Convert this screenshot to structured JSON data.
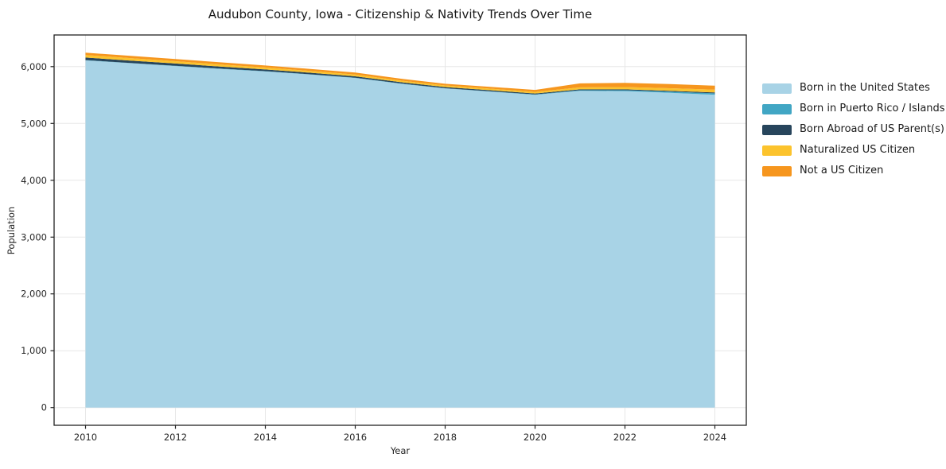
{
  "chart_data": {
    "type": "area",
    "stacked": true,
    "title": "Audubon County, Iowa - Citizenship & Nativity Trends Over Time",
    "xlabel": "Year",
    "ylabel": "Population",
    "x": [
      2010,
      2011,
      2012,
      2013,
      2014,
      2015,
      2016,
      2017,
      2018,
      2019,
      2020,
      2021,
      2022,
      2023,
      2024
    ],
    "series": [
      {
        "name": "Born in the United States",
        "color": "#a8d3e6",
        "values": [
          6110,
          6060,
          6010,
          5960,
          5915,
          5860,
          5800,
          5700,
          5615,
          5560,
          5505,
          5575,
          5570,
          5540,
          5505
        ]
      },
      {
        "name": "Born in Puerto Rico / Islands",
        "color": "#41a6c4",
        "values": [
          5,
          5,
          5,
          5,
          5,
          5,
          5,
          5,
          5,
          5,
          5,
          10,
          15,
          20,
          25
        ]
      },
      {
        "name": "Born Abroad of US Parent(s)",
        "color": "#27455c",
        "values": [
          45,
          42,
          40,
          35,
          30,
          28,
          25,
          22,
          20,
          20,
          18,
          15,
          15,
          15,
          15
        ]
      },
      {
        "name": "Naturalized US Citizen",
        "color": "#fcc32d",
        "values": [
          45,
          43,
          40,
          38,
          35,
          32,
          30,
          29,
          28,
          28,
          28,
          35,
          40,
          45,
          50
        ]
      },
      {
        "name": "Not a US Citizen",
        "color": "#f6961e",
        "values": [
          40,
          40,
          40,
          38,
          35,
          35,
          35,
          33,
          30,
          32,
          35,
          70,
          75,
          72,
          70
        ]
      }
    ],
    "xlim": [
      2009.3,
      2024.7
    ],
    "ylim": [
      -312,
      6557
    ],
    "xticks": {
      "values": [
        2010,
        2012,
        2014,
        2016,
        2018,
        2020,
        2022,
        2024
      ],
      "labels": [
        "2010",
        "2012",
        "2014",
        "2016",
        "2018",
        "2020",
        "2022",
        "2024"
      ]
    },
    "yticks": {
      "values": [
        0,
        1000,
        2000,
        3000,
        4000,
        5000,
        6000
      ],
      "labels": [
        "0",
        "1,000",
        "2,000",
        "3,000",
        "4,000",
        "5,000",
        "6,000"
      ]
    },
    "grid": true,
    "legend_position": "right-outside"
  }
}
